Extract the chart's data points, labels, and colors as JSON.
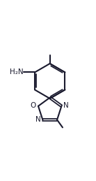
{
  "bg_color": "#ffffff",
  "line_color": "#1a1a2e",
  "line_width": 1.5,
  "font_size_label": 7.5,
  "label_H2N": "H₂N",
  "label_N_right": "N",
  "label_N_left": "N",
  "label_O": "O"
}
